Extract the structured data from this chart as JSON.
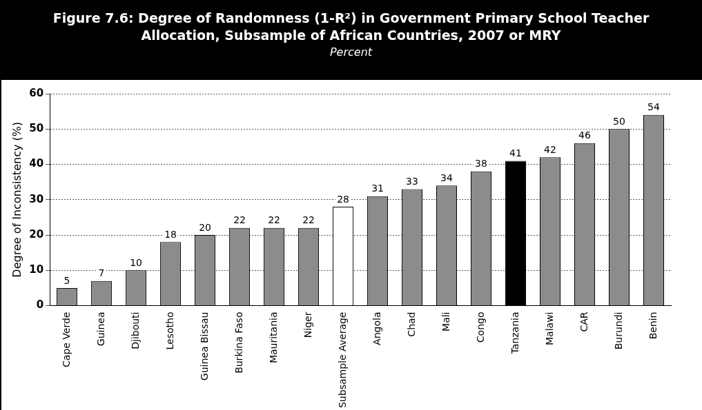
{
  "chart_data": {
    "type": "bar",
    "title": "Figure 7.6: Degree of Randomness (1-R²) in Government Primary School Teacher Allocation, Subsample of African Countries, 2007 or MRY",
    "subtitle": "Percent",
    "ylabel": "Degree of Inconsistency (%)",
    "categories": [
      "Cape Verde",
      "Guinea",
      "Djibouti",
      "Lesotho",
      "Guinea Bissau",
      "Burkina Faso",
      "Mauritania",
      "Niger",
      "Subsample Average",
      "Angola",
      "Chad",
      "Mali",
      "Congo",
      "Tanzania",
      "Malawi",
      "CAR",
      "Burundi",
      "Benin"
    ],
    "values": [
      5,
      7,
      10,
      18,
      20,
      22,
      22,
      22,
      28,
      31,
      33,
      34,
      38,
      41,
      42,
      46,
      50,
      54
    ],
    "colors": [
      "#8c8c8c",
      "#8c8c8c",
      "#8c8c8c",
      "#8c8c8c",
      "#8c8c8c",
      "#8c8c8c",
      "#8c8c8c",
      "#8c8c8c",
      "#ffffff",
      "#8c8c8c",
      "#8c8c8c",
      "#8c8c8c",
      "#8c8c8c",
      "#000000",
      "#8c8c8c",
      "#8c8c8c",
      "#8c8c8c",
      "#8c8c8c"
    ],
    "ylim": [
      0,
      60
    ],
    "yticks": [
      0,
      10,
      20,
      30,
      40,
      50,
      60
    ],
    "grid": "y",
    "legend": false,
    "data_labels": true
  }
}
